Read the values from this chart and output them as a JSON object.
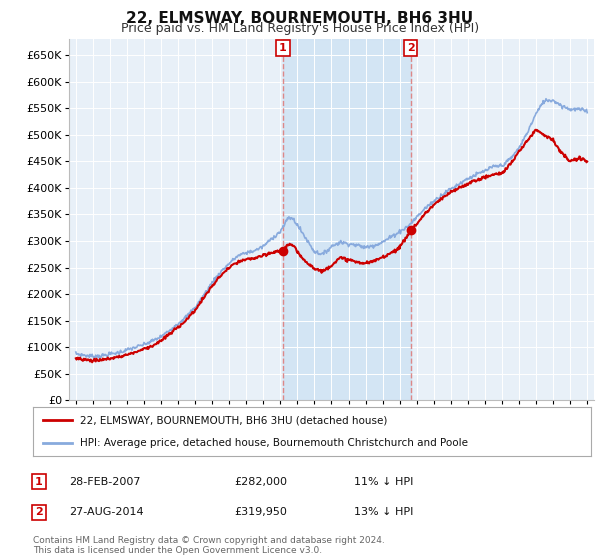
{
  "title": "22, ELMSWAY, BOURNEMOUTH, BH6 3HU",
  "subtitle": "Price paid vs. HM Land Registry's House Price Index (HPI)",
  "ylim": [
    0,
    680000
  ],
  "yticks": [
    0,
    50000,
    100000,
    150000,
    200000,
    250000,
    300000,
    350000,
    400000,
    450000,
    500000,
    550000,
    600000,
    650000
  ],
  "xlim_left": 1994.6,
  "xlim_right": 2025.4,
  "sale1": {
    "date_num": 2007.15,
    "price": 282000,
    "label": "1"
  },
  "sale2": {
    "date_num": 2014.65,
    "price": 319950,
    "label": "2"
  },
  "legend_line1": "22, ELMSWAY, BOURNEMOUTH, BH6 3HU (detached house)",
  "legend_line2": "HPI: Average price, detached house, Bournemouth Christchurch and Poole",
  "table_row1": [
    "1",
    "28-FEB-2007",
    "£282,000",
    "11% ↓ HPI"
  ],
  "table_row2": [
    "2",
    "27-AUG-2014",
    "£319,950",
    "13% ↓ HPI"
  ],
  "footer": "Contains HM Land Registry data © Crown copyright and database right 2024.\nThis data is licensed under the Open Government Licence v3.0.",
  "line_color_red": "#cc0000",
  "line_color_blue": "#88aadd",
  "plot_bg_color": "#e8f0f8",
  "shade_color": "#d0e4f4",
  "vline_color": "#dd8888",
  "marker_color": "#cc0000",
  "grid_color": "#ffffff",
  "title_fontsize": 11,
  "subtitle_fontsize": 9
}
